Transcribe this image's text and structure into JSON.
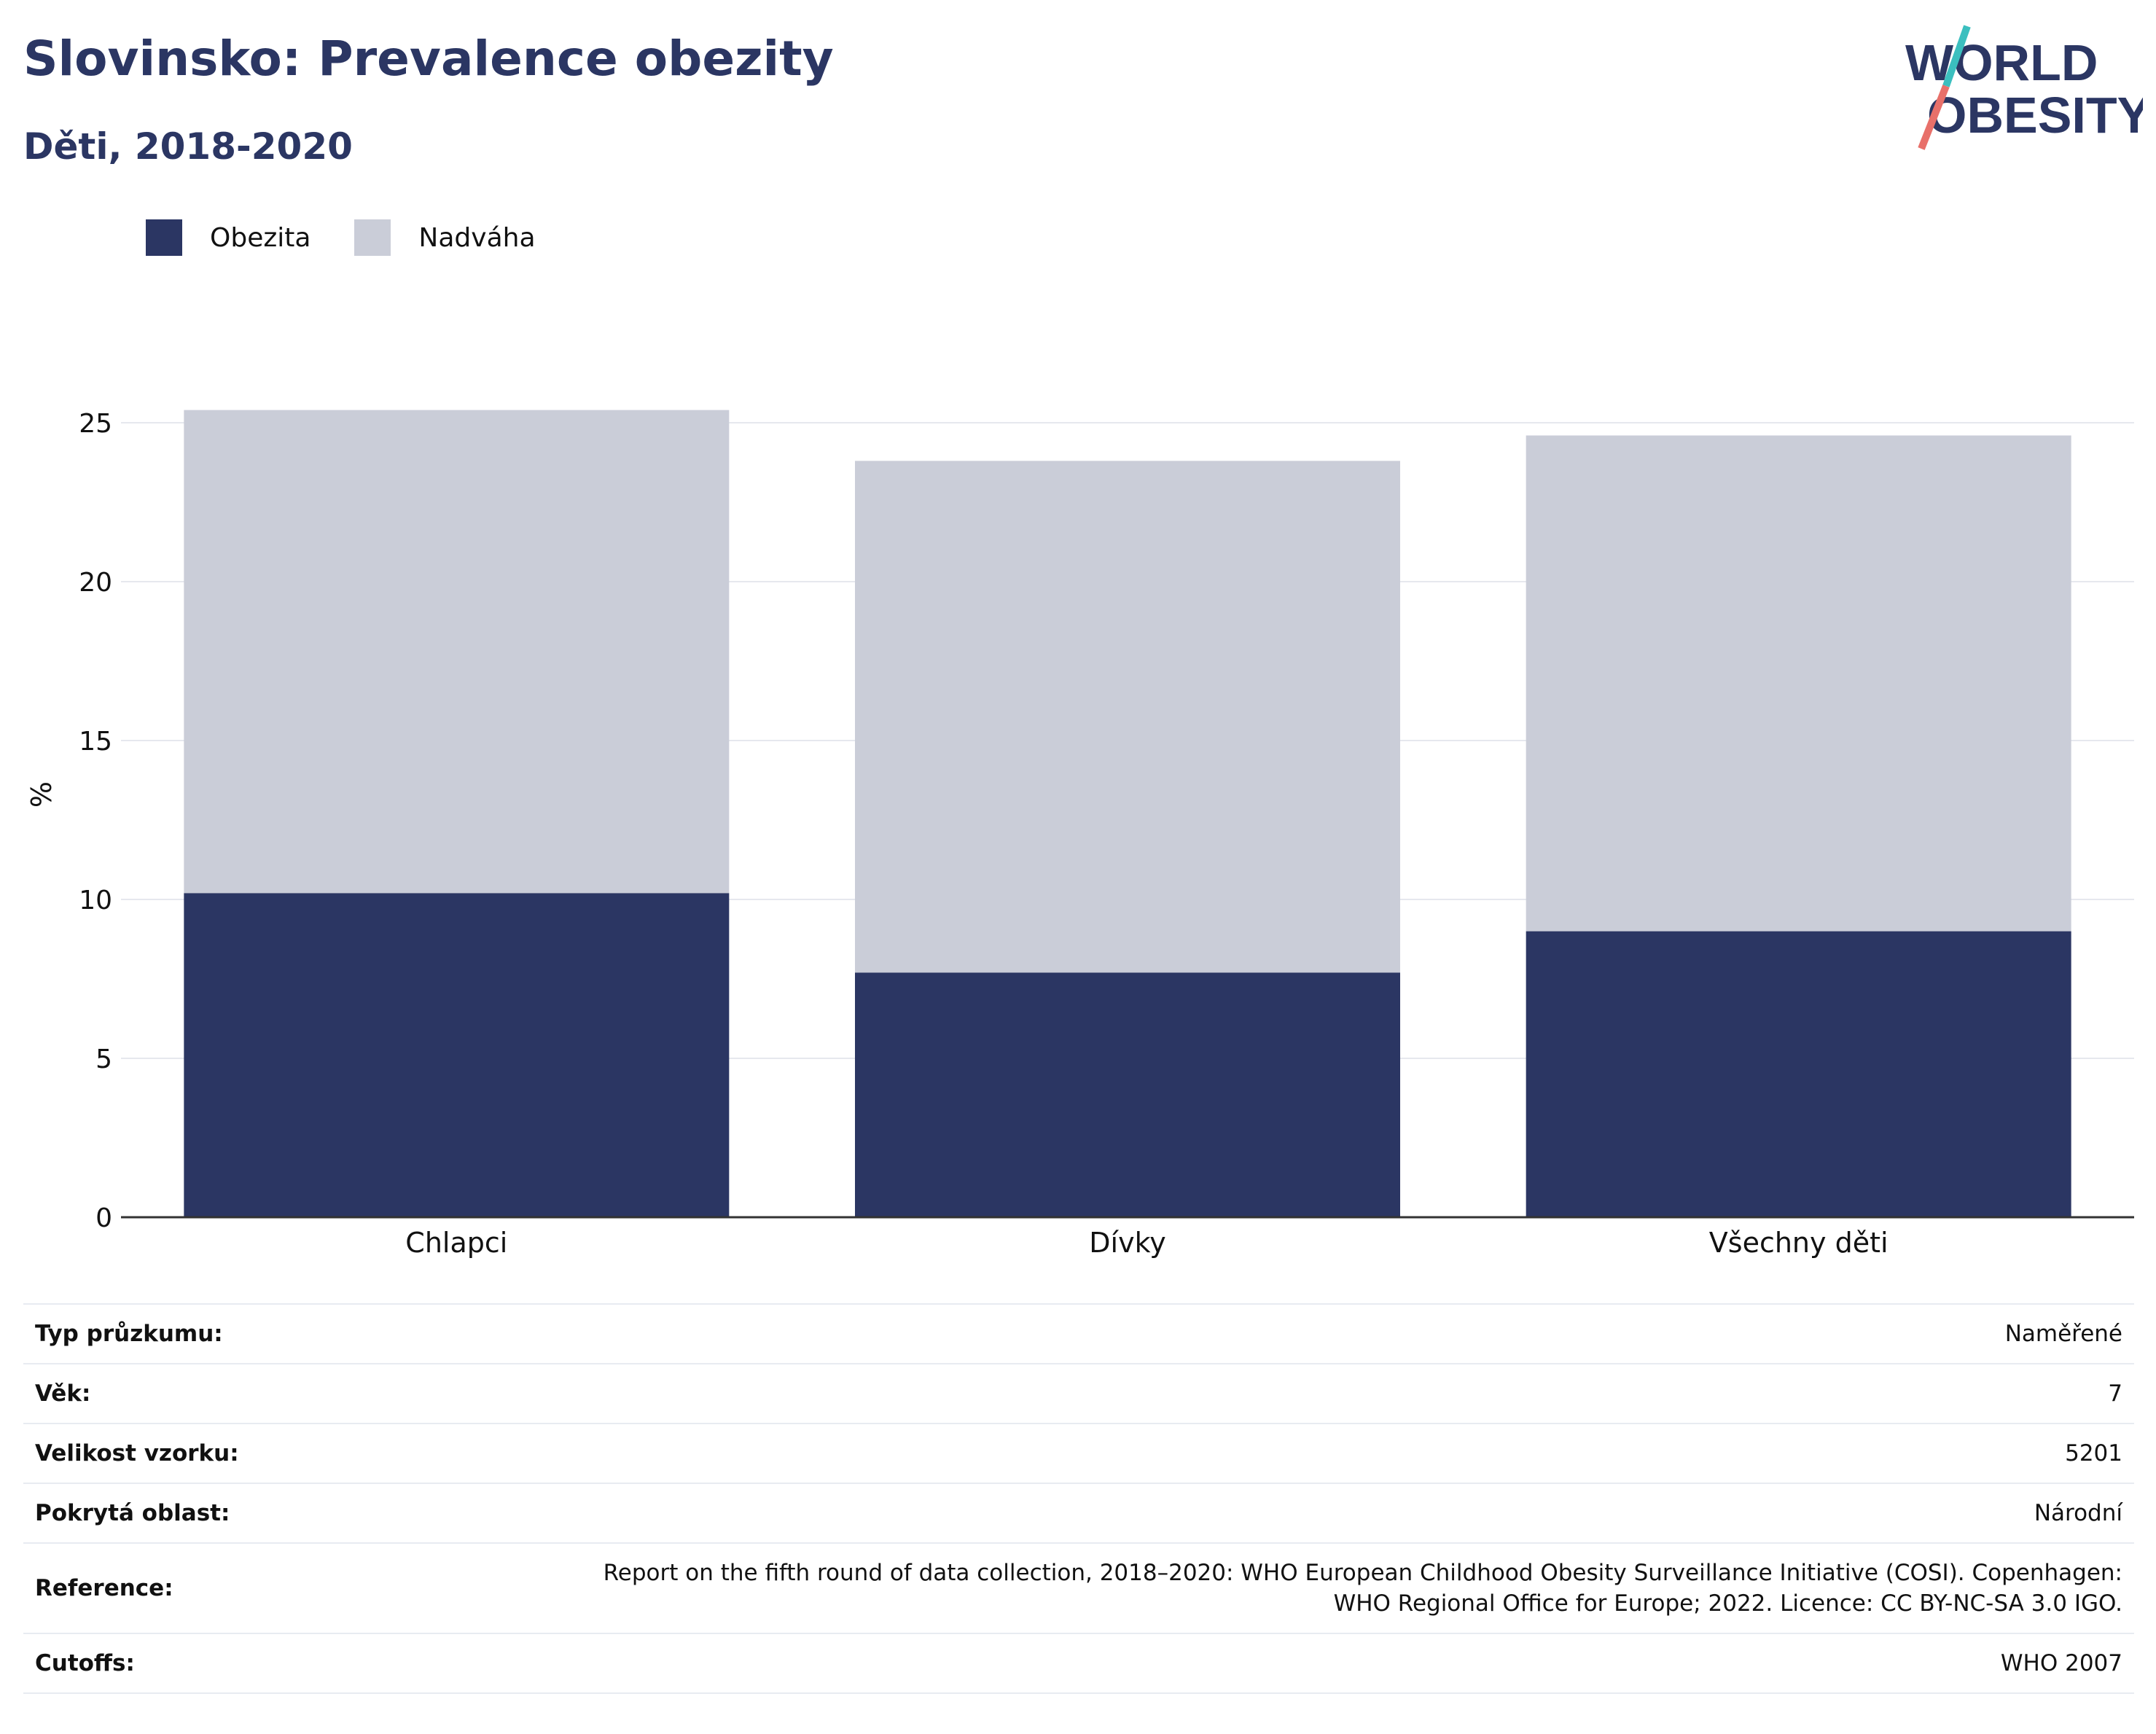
{
  "header": {
    "title": "Slovinsko: Prevalence obezity",
    "subtitle": "Děti, 2018-2020"
  },
  "logo": {
    "line1": "WORLD",
    "line2": "OBESITY",
    "colors": {
      "text": "#2b3663",
      "slash_top": "#3bbfbf",
      "slash_bottom": "#e8706a"
    }
  },
  "chart_data": {
    "type": "bar",
    "stacked": true,
    "categories": [
      "Chlapci",
      "Dívky",
      "Všechny děti"
    ],
    "series": [
      {
        "name": "Obezita",
        "values": [
          10.2,
          7.7,
          9.0
        ],
        "color": "#2b3663"
      },
      {
        "name": "Nadváha",
        "values": [
          15.2,
          16.1,
          15.6
        ],
        "color": "#cacdd8"
      }
    ],
    "ylabel": "%",
    "ylim": [
      0,
      25.7
    ],
    "yticks": [
      0,
      5,
      10,
      15,
      20,
      25
    ],
    "grid": true,
    "legend": "top-left"
  },
  "info": [
    {
      "label": "Typ průzkumu:",
      "value": [
        "Naměřené"
      ]
    },
    {
      "label": "Věk:",
      "value": [
        "7"
      ]
    },
    {
      "label": "Velikost vzorku:",
      "value": [
        "5201"
      ]
    },
    {
      "label": "Pokrytá oblast:",
      "value": [
        "Národní"
      ]
    },
    {
      "label": "Reference:",
      "value": [
        "Report on the fifth round of data collection, 2018–2020: WHO European Childhood Obesity Surveillance Initiative (COSI). Copenhagen:",
        "WHO Regional Office for Europe; 2022. Licence: CC BY-NC-SA 3.0 IGO."
      ]
    },
    {
      "label": "Cutoffs:",
      "value": [
        "WHO 2007"
      ]
    }
  ]
}
